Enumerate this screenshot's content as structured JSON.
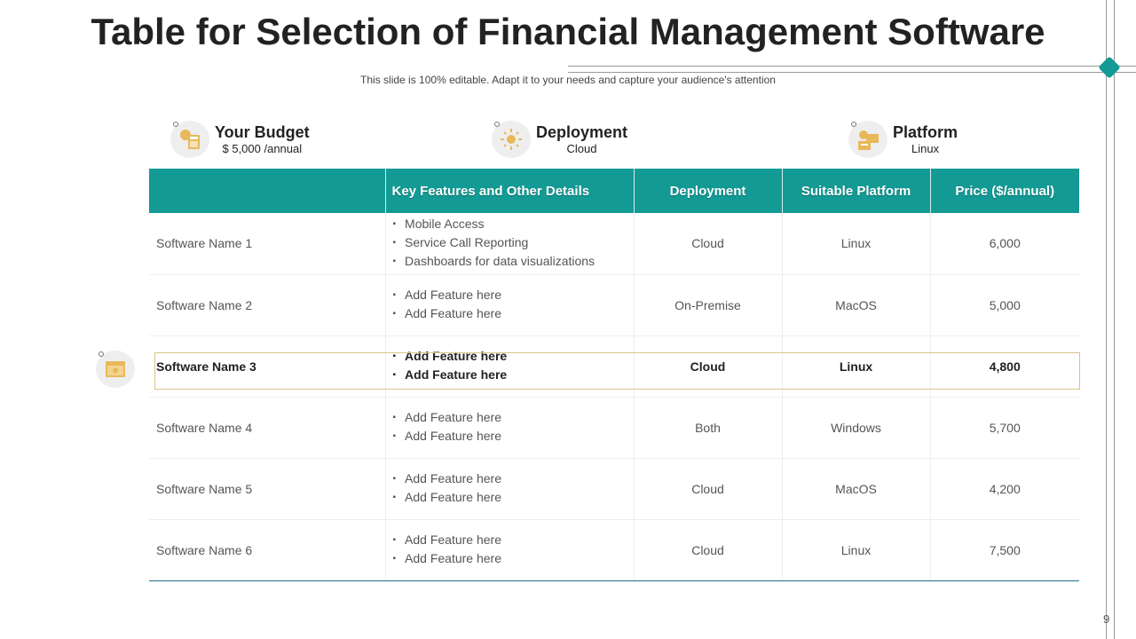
{
  "title": "Table for Selection of Financial Management Software",
  "subtitle": "This slide is 100% editable. Adapt it to your needs and capture your audience's attention",
  "page_number": "9",
  "summary": [
    {
      "label": "Your Budget",
      "value": "$ 5,000 /annual",
      "icon": "budget-calculator-icon"
    },
    {
      "label": "Deployment",
      "value": "Cloud",
      "icon": "sun-gear-icon"
    },
    {
      "label": "Platform",
      "value": "Linux",
      "icon": "platform-cloud-icon"
    }
  ],
  "table": {
    "headers": [
      "",
      "Key Features and Other Details",
      "Deployment",
      "Suitable Platform",
      "Price ($/annual)"
    ],
    "rows": [
      {
        "name": "Software Name 1",
        "features": [
          "Mobile Access",
          "Service Call Reporting",
          "Dashboards for data visualizations"
        ],
        "deployment": "Cloud",
        "platform": "Linux",
        "price": "6,000"
      },
      {
        "name": "Software Name 2",
        "features": [
          "Add Feature here",
          "Add Feature here"
        ],
        "deployment": "On-Premise",
        "platform": "MacOS",
        "price": "5,000"
      },
      {
        "name": "Software Name 3",
        "features": [
          "Add  Feature here",
          "Add  Feature here"
        ],
        "deployment": "Cloud",
        "platform": "Linux",
        "price": "4,800",
        "highlighted": true
      },
      {
        "name": "Software Name 4",
        "features": [
          "Add Feature here",
          "Add Feature here"
        ],
        "deployment": "Both",
        "platform": "Windows",
        "price": "5,700"
      },
      {
        "name": "Software Name 5",
        "features": [
          "Add Feature here",
          "Add Feature here"
        ],
        "deployment": "Cloud",
        "platform": "MacOS",
        "price": "4,200"
      },
      {
        "name": "Software Name 6",
        "features": [
          "Add Feature here",
          "Add Feature here"
        ],
        "deployment": "Cloud",
        "platform": "Linux",
        "price": "7,500"
      }
    ]
  },
  "colors": {
    "accent": "#139a94",
    "icon": "#e8b85a",
    "highlight_border": "#d9c58a"
  }
}
